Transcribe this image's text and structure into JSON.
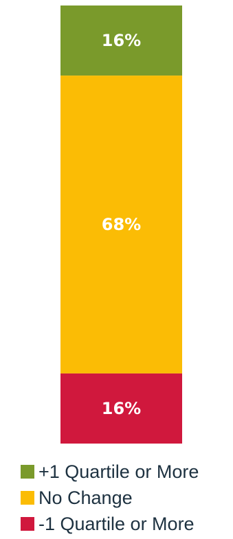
{
  "chart_data": {
    "type": "bar",
    "stacked": true,
    "categories": [
      ""
    ],
    "series": [
      {
        "name": "+1 Quartile or More",
        "values": [
          16
        ],
        "label": "16%",
        "color": "#7a9a2b"
      },
      {
        "name": "No Change",
        "values": [
          68
        ],
        "label": "68%",
        "color": "#fbbc05"
      },
      {
        "name": "-1 Quartile or More",
        "values": [
          16
        ],
        "label": "16%",
        "color": "#d0183d"
      }
    ],
    "title": "",
    "xlabel": "",
    "ylabel": "",
    "ylim": [
      0,
      100
    ],
    "grid": false,
    "legend": "bottom"
  }
}
